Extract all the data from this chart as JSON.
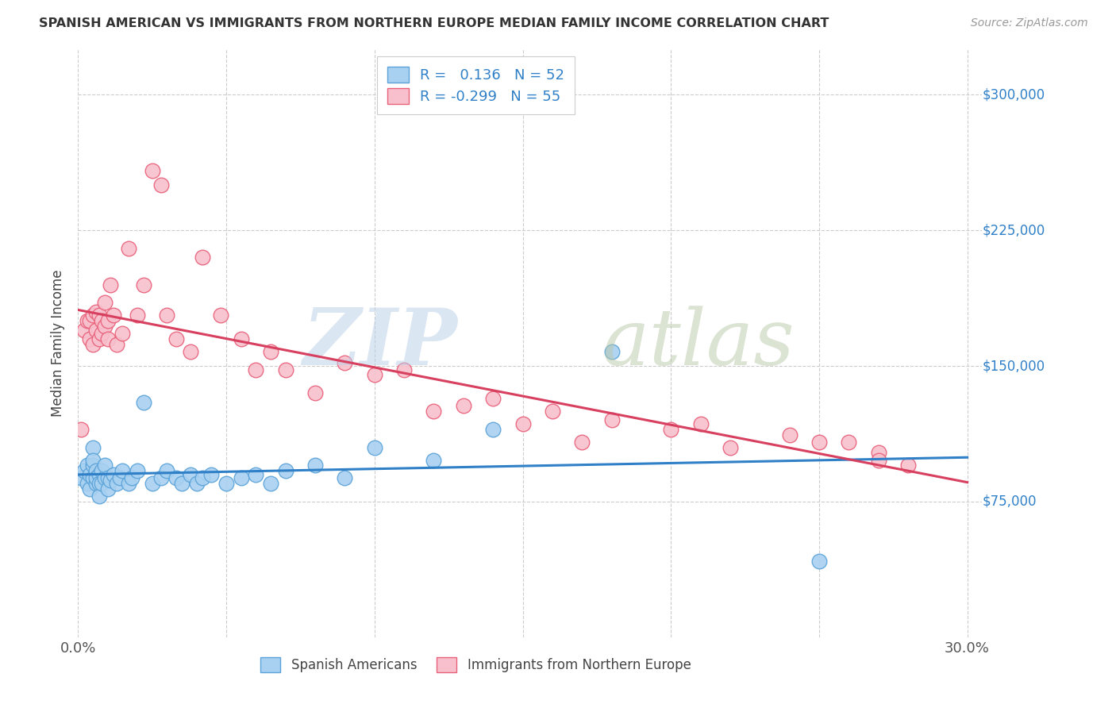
{
  "title": "SPANISH AMERICAN VS IMMIGRANTS FROM NORTHERN EUROPE MEDIAN FAMILY INCOME CORRELATION CHART",
  "source": "Source: ZipAtlas.com",
  "ylabel": "Median Family Income",
  "xlim": [
    0.0,
    0.3
  ],
  "ylim": [
    0,
    325000
  ],
  "yticks": [
    75000,
    150000,
    225000,
    300000
  ],
  "ytick_labels": [
    "$75,000",
    "$150,000",
    "$225,000",
    "$300,000"
  ],
  "xtick_positions": [
    0.0,
    0.05,
    0.1,
    0.15,
    0.2,
    0.25,
    0.3
  ],
  "blue_color": "#A8D0F0",
  "blue_edge_color": "#5BA3D9",
  "pink_color": "#F8C0CC",
  "pink_edge_color": "#E8607A",
  "blue_line_color": "#3080C8",
  "pink_line_color": "#D84060",
  "label_color": "#3080C8",
  "R_blue": 0.136,
  "N_blue": 52,
  "R_pink": -0.299,
  "N_pink": 55,
  "blue_scatter_x": [
    0.001,
    0.002,
    0.003,
    0.003,
    0.004,
    0.004,
    0.005,
    0.005,
    0.005,
    0.005,
    0.006,
    0.006,
    0.006,
    0.007,
    0.007,
    0.007,
    0.008,
    0.008,
    0.009,
    0.009,
    0.01,
    0.01,
    0.011,
    0.012,
    0.013,
    0.014,
    0.015,
    0.017,
    0.018,
    0.02,
    0.022,
    0.025,
    0.028,
    0.03,
    0.033,
    0.035,
    0.038,
    0.04,
    0.042,
    0.045,
    0.05,
    0.055,
    0.06,
    0.065,
    0.07,
    0.08,
    0.09,
    0.1,
    0.12,
    0.14,
    0.18,
    0.25
  ],
  "blue_scatter_y": [
    88000,
    92000,
    85000,
    95000,
    90000,
    82000,
    88000,
    95000,
    105000,
    98000,
    85000,
    92000,
    88000,
    90000,
    85000,
    78000,
    92000,
    85000,
    88000,
    95000,
    88000,
    82000,
    87000,
    90000,
    85000,
    88000,
    92000,
    85000,
    88000,
    92000,
    130000,
    85000,
    88000,
    92000,
    88000,
    85000,
    90000,
    85000,
    88000,
    90000,
    85000,
    88000,
    90000,
    85000,
    92000,
    95000,
    88000,
    105000,
    98000,
    115000,
    158000,
    42000
  ],
  "pink_scatter_x": [
    0.001,
    0.002,
    0.003,
    0.004,
    0.004,
    0.005,
    0.005,
    0.006,
    0.006,
    0.007,
    0.007,
    0.008,
    0.008,
    0.009,
    0.009,
    0.01,
    0.01,
    0.011,
    0.012,
    0.013,
    0.015,
    0.017,
    0.02,
    0.022,
    0.025,
    0.028,
    0.03,
    0.033,
    0.038,
    0.042,
    0.048,
    0.055,
    0.06,
    0.065,
    0.07,
    0.08,
    0.09,
    0.1,
    0.11,
    0.12,
    0.13,
    0.14,
    0.15,
    0.16,
    0.17,
    0.18,
    0.2,
    0.21,
    0.22,
    0.24,
    0.25,
    0.26,
    0.27,
    0.27,
    0.28
  ],
  "pink_scatter_y": [
    115000,
    170000,
    175000,
    175000,
    165000,
    178000,
    162000,
    180000,
    170000,
    178000,
    165000,
    168000,
    175000,
    172000,
    185000,
    165000,
    175000,
    195000,
    178000,
    162000,
    168000,
    215000,
    178000,
    195000,
    258000,
    250000,
    178000,
    165000,
    158000,
    210000,
    178000,
    165000,
    148000,
    158000,
    148000,
    135000,
    152000,
    145000,
    148000,
    125000,
    128000,
    132000,
    118000,
    125000,
    108000,
    120000,
    115000,
    118000,
    105000,
    112000,
    108000,
    108000,
    102000,
    98000,
    95000
  ]
}
